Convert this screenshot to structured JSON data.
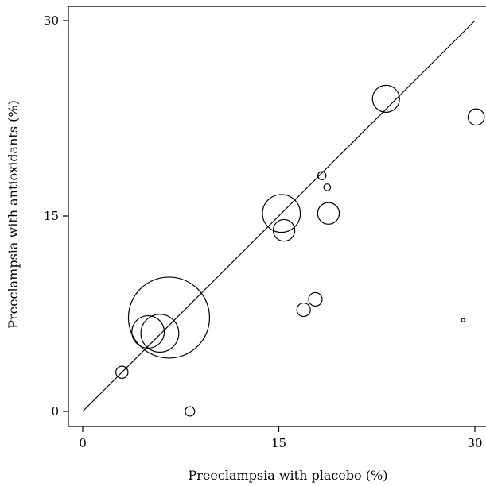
{
  "chart_data": {
    "type": "scatter",
    "title": "",
    "xlabel": "Preeclampsia with placebo (%)",
    "ylabel": "Preeclampsia with antioxidants (%)",
    "xlim": [
      0,
      30
    ],
    "ylim": [
      0,
      30
    ],
    "xticks": [
      "0",
      "15",
      "30"
    ],
    "yticks": [
      "0",
      "15",
      "30"
    ],
    "reference_line": {
      "from": [
        0,
        0
      ],
      "to": [
        30,
        30
      ],
      "label": ""
    },
    "grid": false,
    "marker_size_meaning": "relative study weight (bubble area)",
    "points": [
      {
        "x": 6.6,
        "y": 7.2,
        "r": 3.0
      },
      {
        "x": 15.2,
        "y": 15.2,
        "r": 1.4
      },
      {
        "x": 23.2,
        "y": 24.0,
        "r": 1.0
      },
      {
        "x": 5.9,
        "y": 6.0,
        "r": 1.4
      },
      {
        "x": 5.0,
        "y": 6.1,
        "r": 1.2
      },
      {
        "x": 15.4,
        "y": 13.9,
        "r": 0.8
      },
      {
        "x": 18.8,
        "y": 15.2,
        "r": 0.8
      },
      {
        "x": 30.1,
        "y": 22.6,
        "r": 0.6
      },
      {
        "x": 17.8,
        "y": 8.6,
        "r": 0.5
      },
      {
        "x": 16.9,
        "y": 7.8,
        "r": 0.5
      },
      {
        "x": 3.0,
        "y": 3.0,
        "r": 0.45
      },
      {
        "x": 8.2,
        "y": 0.0,
        "r": 0.35
      },
      {
        "x": 18.3,
        "y": 18.1,
        "r": 0.3
      },
      {
        "x": 18.7,
        "y": 17.2,
        "r": 0.25
      },
      {
        "x": 29.1,
        "y": 7.0,
        "r": 0.12
      }
    ]
  }
}
